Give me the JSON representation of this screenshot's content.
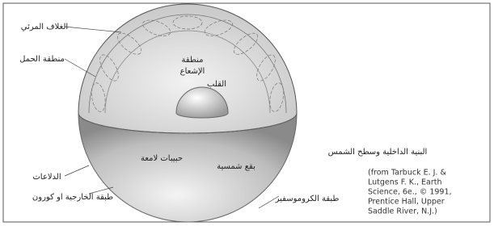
{
  "labels": {
    "photosphere": "الغلاف المرئي",
    "convection_zone": "منطقة الحمل",
    "radiation_zone": [
      "منطقة",
      "الإشعاع"
    ],
    "core": "القلب",
    "granules": "حبيبات لامعة",
    "sunspots": "بقع شمسية",
    "prominences": "الدلاعات",
    "corona": "طبقة الخارجية او كورون",
    "chromosphere": "طبقة الكروموسفير"
  },
  "caption": "البنية الداخلية وسطح الشمس",
  "citation": [
    "(from Tarbuck E. J. &",
    "Lutgens F. K., Earth",
    "Science, 6e., © 1991,",
    "Prentice Hall, Upper",
    "Saddle River, N.J.)"
  ]
}
